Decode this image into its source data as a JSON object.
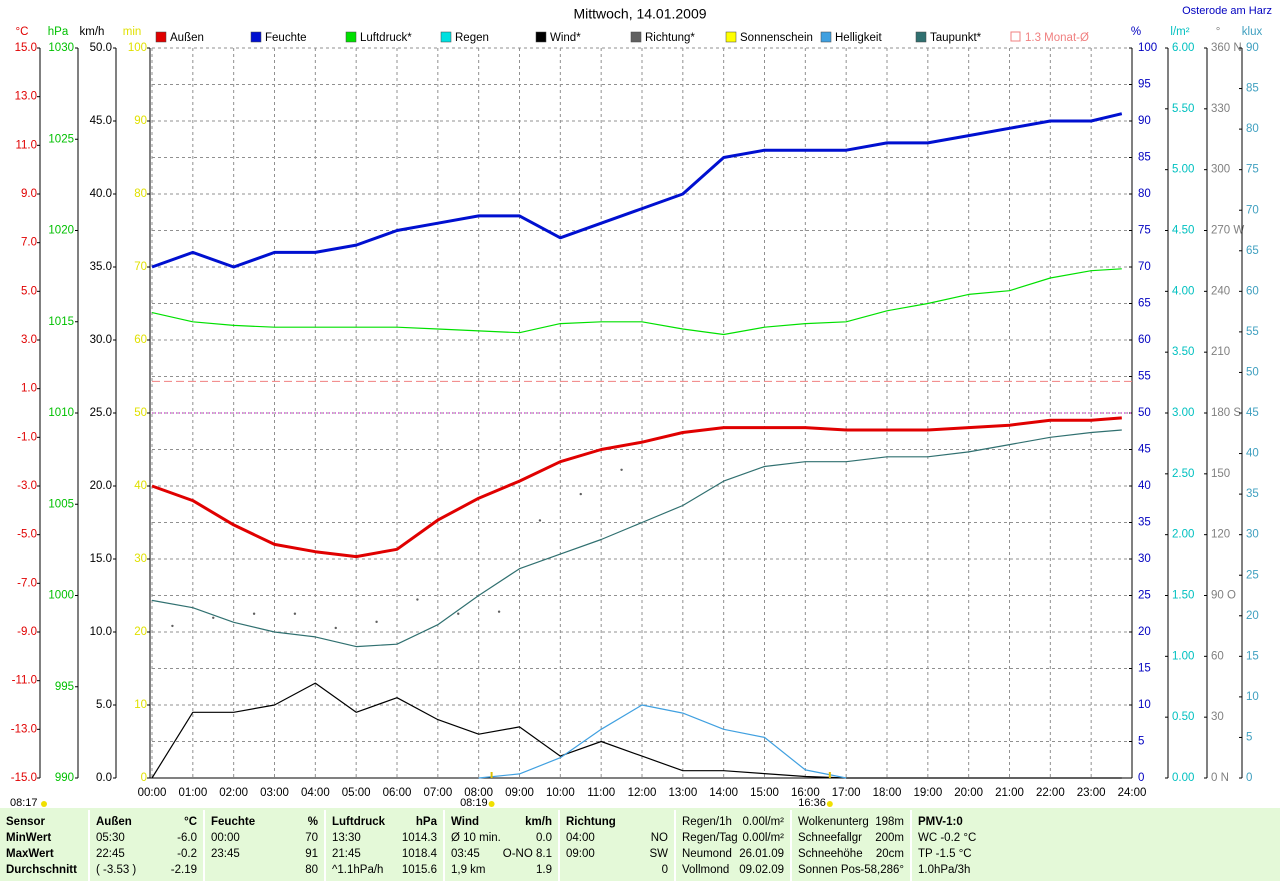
{
  "chart_data": {
    "type": "line",
    "title": "Mittwoch, 14.01.2009",
    "location": "Osterode am Harz",
    "xlim": [
      0,
      24
    ],
    "xticks": [
      {
        "value": 0,
        "label": "00:00"
      },
      {
        "value": 1,
        "label": "01:00"
      },
      {
        "value": 2,
        "label": "02:00"
      },
      {
        "value": 3,
        "label": "03:00"
      },
      {
        "value": 4,
        "label": "04:00"
      },
      {
        "value": 5,
        "label": "05:00"
      },
      {
        "value": 6,
        "label": "06:00"
      },
      {
        "value": 7,
        "label": "07:00"
      },
      {
        "value": 8,
        "label": "08:00"
      },
      {
        "value": 9,
        "label": "09:00"
      },
      {
        "value": 10,
        "label": "10:00"
      },
      {
        "value": 11,
        "label": "11:00"
      },
      {
        "value": 12,
        "label": "12:00"
      },
      {
        "value": 13,
        "label": "13:00"
      },
      {
        "value": 14,
        "label": "14:00"
      },
      {
        "value": 15,
        "label": "15:00"
      },
      {
        "value": 16,
        "label": "16:00"
      },
      {
        "value": 17,
        "label": "17:00"
      },
      {
        "value": 18,
        "label": "18:00"
      },
      {
        "value": 19,
        "label": "19:00"
      },
      {
        "value": 20,
        "label": "20:00"
      },
      {
        "value": 21,
        "label": "21:00"
      },
      {
        "value": 22,
        "label": "22:00"
      },
      {
        "value": 23,
        "label": "23:00"
      },
      {
        "value": 24,
        "label": "24:00"
      }
    ],
    "grid": true,
    "axes": [
      {
        "unit": "°C",
        "color": "#e00000",
        "side": "left",
        "ylim": [
          -15,
          15
        ],
        "yticks": [
          {
            "value": -15,
            "label": "-15.0"
          },
          {
            "value": -13,
            "label": "-13.0"
          },
          {
            "value": -11,
            "label": "-11.0"
          },
          {
            "value": -9,
            "label": "-9.0"
          },
          {
            "value": -7,
            "label": "-7.0"
          },
          {
            "value": -5,
            "label": "-5.0"
          },
          {
            "value": -3,
            "label": "-3.0"
          },
          {
            "value": -1,
            "label": "-1.0"
          },
          {
            "value": 1,
            "label": "1.0"
          },
          {
            "value": 3,
            "label": "3.0"
          },
          {
            "value": 5,
            "label": "5.0"
          },
          {
            "value": 7,
            "label": "7.0"
          },
          {
            "value": 9,
            "label": "9.0"
          },
          {
            "value": 11,
            "label": "11.0"
          },
          {
            "value": 13,
            "label": "13.0"
          },
          {
            "value": 15,
            "label": "15.0"
          }
        ]
      },
      {
        "unit": "hPa",
        "color": "#00c000",
        "side": "left",
        "ylim": [
          990,
          1030
        ],
        "yticks": [
          990,
          995,
          1000,
          1005,
          1010,
          1015,
          1020,
          1025,
          1030
        ]
      },
      {
        "unit": "km/h",
        "color": "#000000",
        "side": "left",
        "ylim": [
          0,
          50
        ],
        "yticks": [
          {
            "value": 0,
            "label": "0.0"
          },
          {
            "value": 5,
            "label": "5.0"
          },
          {
            "value": 10,
            "label": "10.0"
          },
          {
            "value": 15,
            "label": "15.0"
          },
          {
            "value": 20,
            "label": "20.0"
          },
          {
            "value": 25,
            "label": "25.0"
          },
          {
            "value": 30,
            "label": "30.0"
          },
          {
            "value": 35,
            "label": "35.0"
          },
          {
            "value": 40,
            "label": "40.0"
          },
          {
            "value": 45,
            "label": "45.0"
          },
          {
            "value": 50,
            "label": "50.0"
          }
        ]
      },
      {
        "unit": "min",
        "color": "#e0e000",
        "side": "left",
        "ylim": [
          0,
          100
        ],
        "yticks": [
          0,
          10,
          20,
          30,
          40,
          50,
          60,
          70,
          80,
          90,
          100
        ]
      },
      {
        "unit": "%",
        "color": "#0000c0",
        "side": "right",
        "ylim": [
          0,
          100
        ],
        "yticks": [
          0,
          5,
          10,
          15,
          20,
          25,
          30,
          35,
          40,
          45,
          50,
          55,
          60,
          65,
          70,
          75,
          80,
          85,
          90,
          95,
          100
        ]
      },
      {
        "unit": "l/m²",
        "color": "#00c0c0",
        "side": "right",
        "ylim": [
          0,
          6
        ],
        "yticks": [
          {
            "value": 0,
            "label": "0.00"
          },
          {
            "value": 0.5,
            "label": "0.50"
          },
          {
            "value": 1,
            "label": "1.00"
          },
          {
            "value": 1.5,
            "label": "1.50"
          },
          {
            "value": 2,
            "label": "2.00"
          },
          {
            "value": 2.5,
            "label": "2.50"
          },
          {
            "value": 3,
            "label": "3.00"
          },
          {
            "value": 3.5,
            "label": "3.50"
          },
          {
            "value": 4,
            "label": "4.00"
          },
          {
            "value": 4.5,
            "label": "4.50"
          },
          {
            "value": 5,
            "label": "5.00"
          },
          {
            "value": 5.5,
            "label": "5.50"
          },
          {
            "value": 6,
            "label": "6.00"
          }
        ]
      },
      {
        "unit": "°",
        "color": "#808080",
        "side": "right",
        "ylim": [
          0,
          360
        ],
        "yticks": [
          {
            "value": 0,
            "label": "0 N"
          },
          30,
          60,
          {
            "value": 90,
            "label": "90 O"
          },
          120,
          150,
          {
            "value": 180,
            "label": "180 S"
          },
          210,
          240,
          {
            "value": 270,
            "label": "270 W"
          },
          300,
          330,
          {
            "value": 360,
            "label": "360 N"
          }
        ]
      },
      {
        "unit": "klux",
        "color": "#40a0c0",
        "side": "right",
        "ylim": [
          0,
          90
        ],
        "yticks": [
          0,
          5,
          10,
          15,
          20,
          25,
          30,
          35,
          40,
          45,
          50,
          55,
          60,
          65,
          70,
          75,
          80,
          85,
          90
        ]
      }
    ],
    "x": [
      0,
      1,
      2,
      3,
      4,
      5,
      6,
      7,
      8,
      9,
      10,
      11,
      12,
      13,
      14,
      15,
      16,
      17,
      18,
      19,
      20,
      21,
      22,
      23,
      23.75
    ],
    "series": [
      {
        "name": "Außen",
        "color": "#e00000",
        "axis": 0,
        "bold": true,
        "values": [
          -3.0,
          -3.6,
          -4.6,
          -5.4,
          -5.7,
          -5.9,
          -5.6,
          -4.4,
          -3.5,
          -2.8,
          -2.0,
          -1.5,
          -1.2,
          -0.8,
          -0.6,
          -0.6,
          -0.6,
          -0.7,
          -0.7,
          -0.7,
          -0.6,
          -0.5,
          -0.3,
          -0.3,
          -0.2
        ]
      },
      {
        "name": "Feuchte",
        "color": "#0010d0",
        "axis": 4,
        "bold": true,
        "values": [
          70,
          72,
          70,
          72,
          72,
          73,
          75,
          76,
          77,
          77,
          74,
          76,
          78,
          80,
          85,
          86,
          86,
          86,
          87,
          87,
          88,
          89,
          90,
          90,
          91
        ]
      },
      {
        "name": "Luftdruck*",
        "color": "#00e000",
        "axis": 1,
        "values": [
          1015.5,
          1015.0,
          1014.8,
          1014.7,
          1014.7,
          1014.7,
          1014.7,
          1014.6,
          1014.5,
          1014.4,
          1014.9,
          1015.0,
          1015.0,
          1014.6,
          1014.3,
          1014.7,
          1014.9,
          1015.0,
          1015.6,
          1016.0,
          1016.5,
          1016.7,
          1017.4,
          1017.8,
          1017.9
        ]
      },
      {
        "name": "Regen",
        "color": "#00e0e0",
        "axis": 5
      },
      {
        "name": "Wind*",
        "color": "#000000",
        "axis": 2,
        "values": [
          0.0,
          4.5,
          4.5,
          5.0,
          6.5,
          4.5,
          5.5,
          4.0,
          3.0,
          3.5,
          1.5,
          2.5,
          1.5,
          0.5,
          0.5,
          0.3,
          0.1,
          0,
          0,
          0,
          0,
          0,
          0,
          0,
          0
        ]
      },
      {
        "name": "Richtung*",
        "color": "#606060",
        "axis": 6,
        "style": "dots",
        "x": [
          0.5,
          1.5,
          2.5,
          3.5,
          4.5,
          5.5,
          6.5,
          7.5,
          8.5,
          9.5,
          10.5,
          11.5
        ],
        "values": [
          75,
          79,
          81,
          81,
          74,
          77,
          88,
          81,
          82,
          127,
          140,
          152
        ]
      },
      {
        "name": "Sonnenschein",
        "color": "#ffff00",
        "axis": 3
      },
      {
        "name": "Helligkeit",
        "color": "#40a0e0",
        "axis": 7,
        "values": [
          null,
          null,
          null,
          null,
          null,
          null,
          null,
          null,
          0,
          0.5,
          2.5,
          6,
          9,
          8,
          6,
          5,
          1,
          0,
          null,
          null,
          null,
          null,
          null,
          null,
          null
        ]
      },
      {
        "name": "Taupunkt*",
        "color": "#307070",
        "axis": 0,
        "values": [
          -7.7,
          -8.0,
          -8.6,
          -9.0,
          -9.2,
          -9.6,
          -9.5,
          -8.7,
          -7.5,
          -6.4,
          -5.8,
          -5.2,
          -4.5,
          -3.8,
          -2.8,
          -2.2,
          -2.0,
          -2.0,
          -1.8,
          -1.8,
          -1.6,
          -1.3,
          -1.0,
          -0.8,
          -0.7
        ]
      },
      {
        "name": "1.3 Monat-Ø",
        "color": "#f08080",
        "axis": 0,
        "style": "reference",
        "value": 1.3
      }
    ],
    "marker_lines": [
      {
        "axis": 0,
        "value": 0,
        "color": "#c000c0"
      }
    ],
    "time_marks": [
      {
        "label": "08:17"
      },
      {
        "label": "08:19",
        "x": 8.3167
      },
      {
        "label": "16:36",
        "x": 16.6
      }
    ]
  },
  "table": {
    "panels": [
      {
        "rows": [
          {
            "left": "Sensor"
          },
          {
            "left": "MinWert"
          },
          {
            "left": "MaxWert"
          },
          {
            "left": "Durchschnitt"
          }
        ],
        "bold": true
      },
      {
        "header": {
          "left": "Außen",
          "right": "°C"
        },
        "rows": [
          {
            "left": "05:30",
            "right": "-6.0"
          },
          {
            "left": "22:45",
            "right": "-0.2"
          },
          {
            "left": "( -3.53 )",
            "right": "-2.19"
          }
        ]
      },
      {
        "header": {
          "left": "Feuchte",
          "right": "%"
        },
        "rows": [
          {
            "left": "00:00",
            "right": "70"
          },
          {
            "left": "23:45",
            "right": "91"
          },
          {
            "right": "80"
          }
        ]
      },
      {
        "header": {
          "left": "Luftdruck",
          "right": "hPa"
        },
        "rows": [
          {
            "left": "13:30",
            "right": "1014.3"
          },
          {
            "left": "21:45",
            "right": "1018.4"
          },
          {
            "left": "^1.1hPa/h",
            "right": "1015.6"
          }
        ]
      },
      {
        "header": {
          "left": "Wind",
          "right": "km/h"
        },
        "rows": [
          {
            "left": "Ø 10 min.",
            "right": "0.0"
          },
          {
            "left": "03:45",
            "right": "O-NO 8.1"
          },
          {
            "left": "1,9 km",
            "right": "1.9"
          }
        ]
      },
      {
        "header": {
          "left": "Richtung"
        },
        "rows": [
          {
            "left": "04:00",
            "right": "NO"
          },
          {
            "left": "09:00",
            "right": "SW"
          },
          {
            "right": "0"
          }
        ]
      },
      {
        "rows": [
          {
            "left": "Regen/1h",
            "right": "0.00l/m²"
          },
          {
            "left": "Regen/Tag",
            "right": "0.00l/m²"
          },
          {
            "left": "Neumond",
            "right": "26.01.09"
          },
          {
            "left": "Vollmond",
            "right": "09.02.09"
          }
        ]
      },
      {
        "rows": [
          {
            "left": "Wolkenunterg",
            "right": "198m"
          },
          {
            "left": "Schneefallgr",
            "right": "200m"
          },
          {
            "left": "Schneehöhe",
            "right": "20cm"
          },
          {
            "left": "Sonnen Pos",
            "right": "-58,286°"
          }
        ]
      },
      {
        "header": {
          "left": "PMV-1:0"
        },
        "rows": [
          {
            "left": "WC -0.2 °C"
          },
          {
            "left": "TP -1.5 °C"
          },
          {
            "left": "1.0hPa/3h"
          }
        ]
      }
    ]
  }
}
